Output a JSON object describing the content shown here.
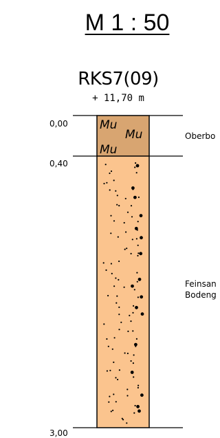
{
  "title": "M 1 : 50",
  "borehole": {
    "name": "RKS7(09)",
    "elevation": "+ 11,70 m"
  },
  "depths": [
    "0,00",
    "0,40",
    "3,00"
  ],
  "layers": [
    {
      "id": "topsoil",
      "description_lines": [
        "Oberbo"
      ],
      "symbol_text": "Mu",
      "fill_color": "#d8a571"
    },
    {
      "id": "fine-sand",
      "description_lines": [
        "Feinsan",
        "Bodeng"
      ],
      "fill_color": "#fbc48e"
    }
  ]
}
